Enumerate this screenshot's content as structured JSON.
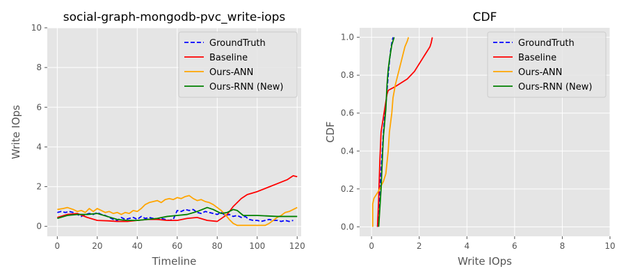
{
  "chart_data": [
    {
      "type": "line",
      "title": "social-graph-mongodb-pvc_write-iops",
      "xlabel": "Timeline",
      "ylabel": "Write IOps",
      "xlim": [
        -5,
        122
      ],
      "ylim": [
        -0.5,
        10
      ],
      "xticks": [
        0,
        20,
        40,
        60,
        80,
        100,
        120
      ],
      "yticks": [
        0,
        2,
        4,
        6,
        8,
        10
      ],
      "grid": true,
      "legend_position": "top-right",
      "series": [
        {
          "name": "GroundTruth",
          "color": "#0000ff",
          "dash": "dashed",
          "x": [
            0,
            2,
            4,
            6,
            8,
            10,
            12,
            14,
            16,
            18,
            20,
            22,
            24,
            26,
            28,
            30,
            32,
            34,
            36,
            38,
            40,
            42,
            44,
            46,
            48,
            50,
            52,
            54,
            56,
            58,
            60,
            62,
            64,
            66,
            68,
            70,
            72,
            74,
            76,
            78,
            80,
            82,
            84,
            86,
            88,
            90,
            92,
            94,
            96,
            98,
            100,
            102,
            104,
            106,
            108,
            110,
            112,
            114,
            116,
            118
          ],
          "y": [
            0.7,
            0.75,
            0.7,
            0.75,
            0.7,
            0.6,
            0.5,
            0.6,
            0.65,
            0.6,
            0.7,
            0.6,
            0.55,
            0.45,
            0.35,
            0.3,
            0.45,
            0.35,
            0.4,
            0.45,
            0.35,
            0.5,
            0.4,
            0.45,
            0.4,
            0.35,
            0.4,
            0.35,
            0.3,
            0.35,
            0.8,
            0.75,
            0.85,
            0.8,
            0.85,
            0.7,
            0.65,
            0.75,
            0.7,
            0.65,
            0.6,
            0.7,
            0.55,
            0.6,
            0.5,
            0.55,
            0.45,
            0.5,
            0.35,
            0.3,
            0.3,
            0.25,
            0.3,
            0.35,
            0.3,
            0.3,
            0.25,
            0.3,
            0.25,
            0.3
          ]
        },
        {
          "name": "Baseline",
          "color": "#ff0000",
          "dash": "solid",
          "x": [
            0,
            5,
            10,
            15,
            20,
            25,
            30,
            35,
            40,
            45,
            50,
            55,
            60,
            65,
            70,
            75,
            80,
            85,
            88,
            92,
            95,
            100,
            105,
            110,
            115,
            118,
            120
          ],
          "y": [
            0.45,
            0.6,
            0.65,
            0.45,
            0.3,
            0.28,
            0.25,
            0.25,
            0.3,
            0.35,
            0.35,
            0.3,
            0.3,
            0.4,
            0.45,
            0.3,
            0.25,
            0.6,
            1.0,
            1.4,
            1.6,
            1.75,
            1.95,
            2.15,
            2.35,
            2.55,
            2.5
          ]
        },
        {
          "name": "Ours-ANN",
          "color": "#ffa500",
          "dash": "solid",
          "x": [
            0,
            3,
            5,
            8,
            10,
            12,
            14,
            16,
            18,
            20,
            22,
            24,
            26,
            28,
            30,
            32,
            34,
            36,
            38,
            40,
            42,
            44,
            46,
            48,
            50,
            52,
            54,
            56,
            58,
            60,
            62,
            64,
            66,
            68,
            70,
            72,
            74,
            76,
            78,
            80,
            82,
            84,
            86,
            88,
            90,
            92,
            94,
            96,
            98,
            100,
            102,
            104,
            106,
            108,
            110,
            112,
            114,
            116,
            118,
            120
          ],
          "y": [
            0.85,
            0.9,
            0.95,
            0.85,
            0.75,
            0.8,
            0.7,
            0.9,
            0.75,
            0.9,
            0.8,
            0.7,
            0.75,
            0.65,
            0.7,
            0.6,
            0.7,
            0.65,
            0.8,
            0.75,
            0.9,
            1.1,
            1.2,
            1.25,
            1.3,
            1.2,
            1.35,
            1.4,
            1.35,
            1.45,
            1.4,
            1.5,
            1.55,
            1.4,
            1.3,
            1.35,
            1.25,
            1.2,
            1.1,
            0.95,
            0.8,
            0.6,
            0.35,
            0.15,
            0.05,
            0.05,
            0.05,
            0.05,
            0.05,
            0.05,
            0.05,
            0.05,
            0.15,
            0.3,
            0.45,
            0.55,
            0.7,
            0.75,
            0.85,
            0.95
          ]
        },
        {
          "name": "Ours-RNN (New)",
          "color": "#008000",
          "dash": "solid",
          "x": [
            0,
            5,
            10,
            15,
            20,
            25,
            30,
            35,
            40,
            45,
            50,
            55,
            60,
            65,
            70,
            75,
            78,
            82,
            85,
            88,
            90,
            93,
            96,
            100,
            110,
            120
          ],
          "y": [
            0.4,
            0.55,
            0.6,
            0.6,
            0.65,
            0.5,
            0.35,
            0.3,
            0.3,
            0.35,
            0.4,
            0.5,
            0.55,
            0.6,
            0.75,
            0.95,
            0.85,
            0.65,
            0.7,
            0.85,
            0.8,
            0.55,
            0.55,
            0.55,
            0.5,
            0.5
          ]
        }
      ]
    },
    {
      "type": "line",
      "title": "CDF",
      "xlabel": "Write IOps",
      "ylabel": "CDF",
      "xlim": [
        -0.5,
        10
      ],
      "ylim": [
        -0.05,
        1.05
      ],
      "xticks": [
        0,
        2,
        4,
        6,
        8,
        10
      ],
      "yticks": [
        0.0,
        0.2,
        0.4,
        0.6,
        0.8,
        1.0
      ],
      "grid": true,
      "legend_position": "top-right",
      "series": [
        {
          "name": "GroundTruth",
          "color": "#0000ff",
          "dash": "dashed",
          "x": [
            0.25,
            0.3,
            0.35,
            0.4,
            0.45,
            0.5,
            0.55,
            0.6,
            0.65,
            0.7,
            0.75,
            0.8,
            0.85,
            0.9
          ],
          "y": [
            0.0,
            0.1,
            0.2,
            0.3,
            0.4,
            0.5,
            0.58,
            0.64,
            0.72,
            0.8,
            0.87,
            0.93,
            0.97,
            1.0
          ]
        },
        {
          "name": "Baseline",
          "color": "#ff0000",
          "dash": "solid",
          "x": [
            0.25,
            0.3,
            0.35,
            0.4,
            0.5,
            0.55,
            0.6,
            0.65,
            0.7,
            1.0,
            1.5,
            1.8,
            2.0,
            2.2,
            2.35,
            2.45,
            2.5,
            2.55
          ],
          "y": [
            0.0,
            0.15,
            0.35,
            0.5,
            0.58,
            0.62,
            0.66,
            0.7,
            0.72,
            0.74,
            0.78,
            0.82,
            0.86,
            0.9,
            0.93,
            0.95,
            0.97,
            1.0
          ]
        },
        {
          "name": "Ours-ANN",
          "color": "#ffa500",
          "dash": "solid",
          "x": [
            0.05,
            0.05,
            0.1,
            0.2,
            0.3,
            0.5,
            0.6,
            0.7,
            0.75,
            0.8,
            0.85,
            0.9,
            1.0,
            1.1,
            1.2,
            1.3,
            1.4,
            1.5,
            1.55
          ],
          "y": [
            0.0,
            0.12,
            0.15,
            0.17,
            0.19,
            0.24,
            0.28,
            0.4,
            0.5,
            0.55,
            0.6,
            0.68,
            0.75,
            0.8,
            0.85,
            0.9,
            0.95,
            0.98,
            1.0
          ]
        },
        {
          "name": "Ours-RNN (New)",
          "color": "#008000",
          "dash": "solid",
          "x": [
            0.3,
            0.35,
            0.4,
            0.45,
            0.5,
            0.55,
            0.6,
            0.65,
            0.7,
            0.75,
            0.8,
            0.85,
            0.9,
            0.95
          ],
          "y": [
            0.0,
            0.1,
            0.2,
            0.35,
            0.48,
            0.55,
            0.62,
            0.75,
            0.83,
            0.88,
            0.92,
            0.96,
            0.98,
            1.0
          ]
        }
      ]
    }
  ]
}
